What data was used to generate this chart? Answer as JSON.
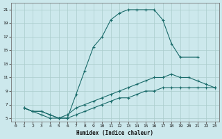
{
  "xlabel": "Humidex (Indice chaleur)",
  "bg_color": "#cce8ec",
  "line_color": "#1a6b6a",
  "grid_color": "#aacccc",
  "xlim": [
    -0.5,
    23.5
  ],
  "ylim": [
    4.5,
    22
  ],
  "xticks": [
    0,
    1,
    2,
    3,
    4,
    5,
    6,
    7,
    8,
    9,
    10,
    11,
    12,
    13,
    14,
    15,
    16,
    17,
    18,
    19,
    20,
    21,
    22,
    23
  ],
  "yticks": [
    5,
    7,
    9,
    11,
    13,
    15,
    17,
    19,
    21
  ],
  "line1_x": [
    1,
    2,
    3,
    4,
    5,
    6,
    7,
    8,
    9,
    10,
    11,
    12,
    13,
    14,
    15,
    16,
    17,
    18,
    19,
    21
  ],
  "line1_y": [
    6.5,
    6.0,
    5.5,
    5.0,
    5.0,
    5.0,
    8.5,
    12.0,
    15.5,
    17.0,
    19.5,
    20.5,
    21.0,
    21.0,
    21.0,
    21.0,
    19.5,
    16.0,
    14.0,
    14.0
  ],
  "line2_x": [
    1,
    2,
    3,
    4,
    5,
    6,
    7,
    8,
    9,
    10,
    11,
    12,
    13,
    14,
    15,
    16,
    17,
    18,
    19,
    20,
    21,
    22,
    23
  ],
  "line2_y": [
    6.5,
    6.0,
    6.0,
    5.5,
    5.0,
    5.5,
    6.5,
    7.0,
    7.5,
    8.0,
    8.5,
    9.0,
    9.5,
    10.0,
    10.5,
    11.0,
    11.0,
    11.5,
    11.0,
    11.0,
    10.5,
    10.0,
    9.5
  ],
  "line3_x": [
    1,
    2,
    3,
    4,
    5,
    6,
    7,
    8,
    9,
    10,
    11,
    12,
    13,
    14,
    15,
    16,
    17,
    18,
    19,
    20,
    21,
    22,
    23
  ],
  "line3_y": [
    6.5,
    6.0,
    6.0,
    5.5,
    5.0,
    5.0,
    5.5,
    6.0,
    6.5,
    7.0,
    7.5,
    8.0,
    8.0,
    8.5,
    9.0,
    9.0,
    9.5,
    9.5,
    9.5,
    9.5,
    9.5,
    9.5,
    9.5
  ]
}
